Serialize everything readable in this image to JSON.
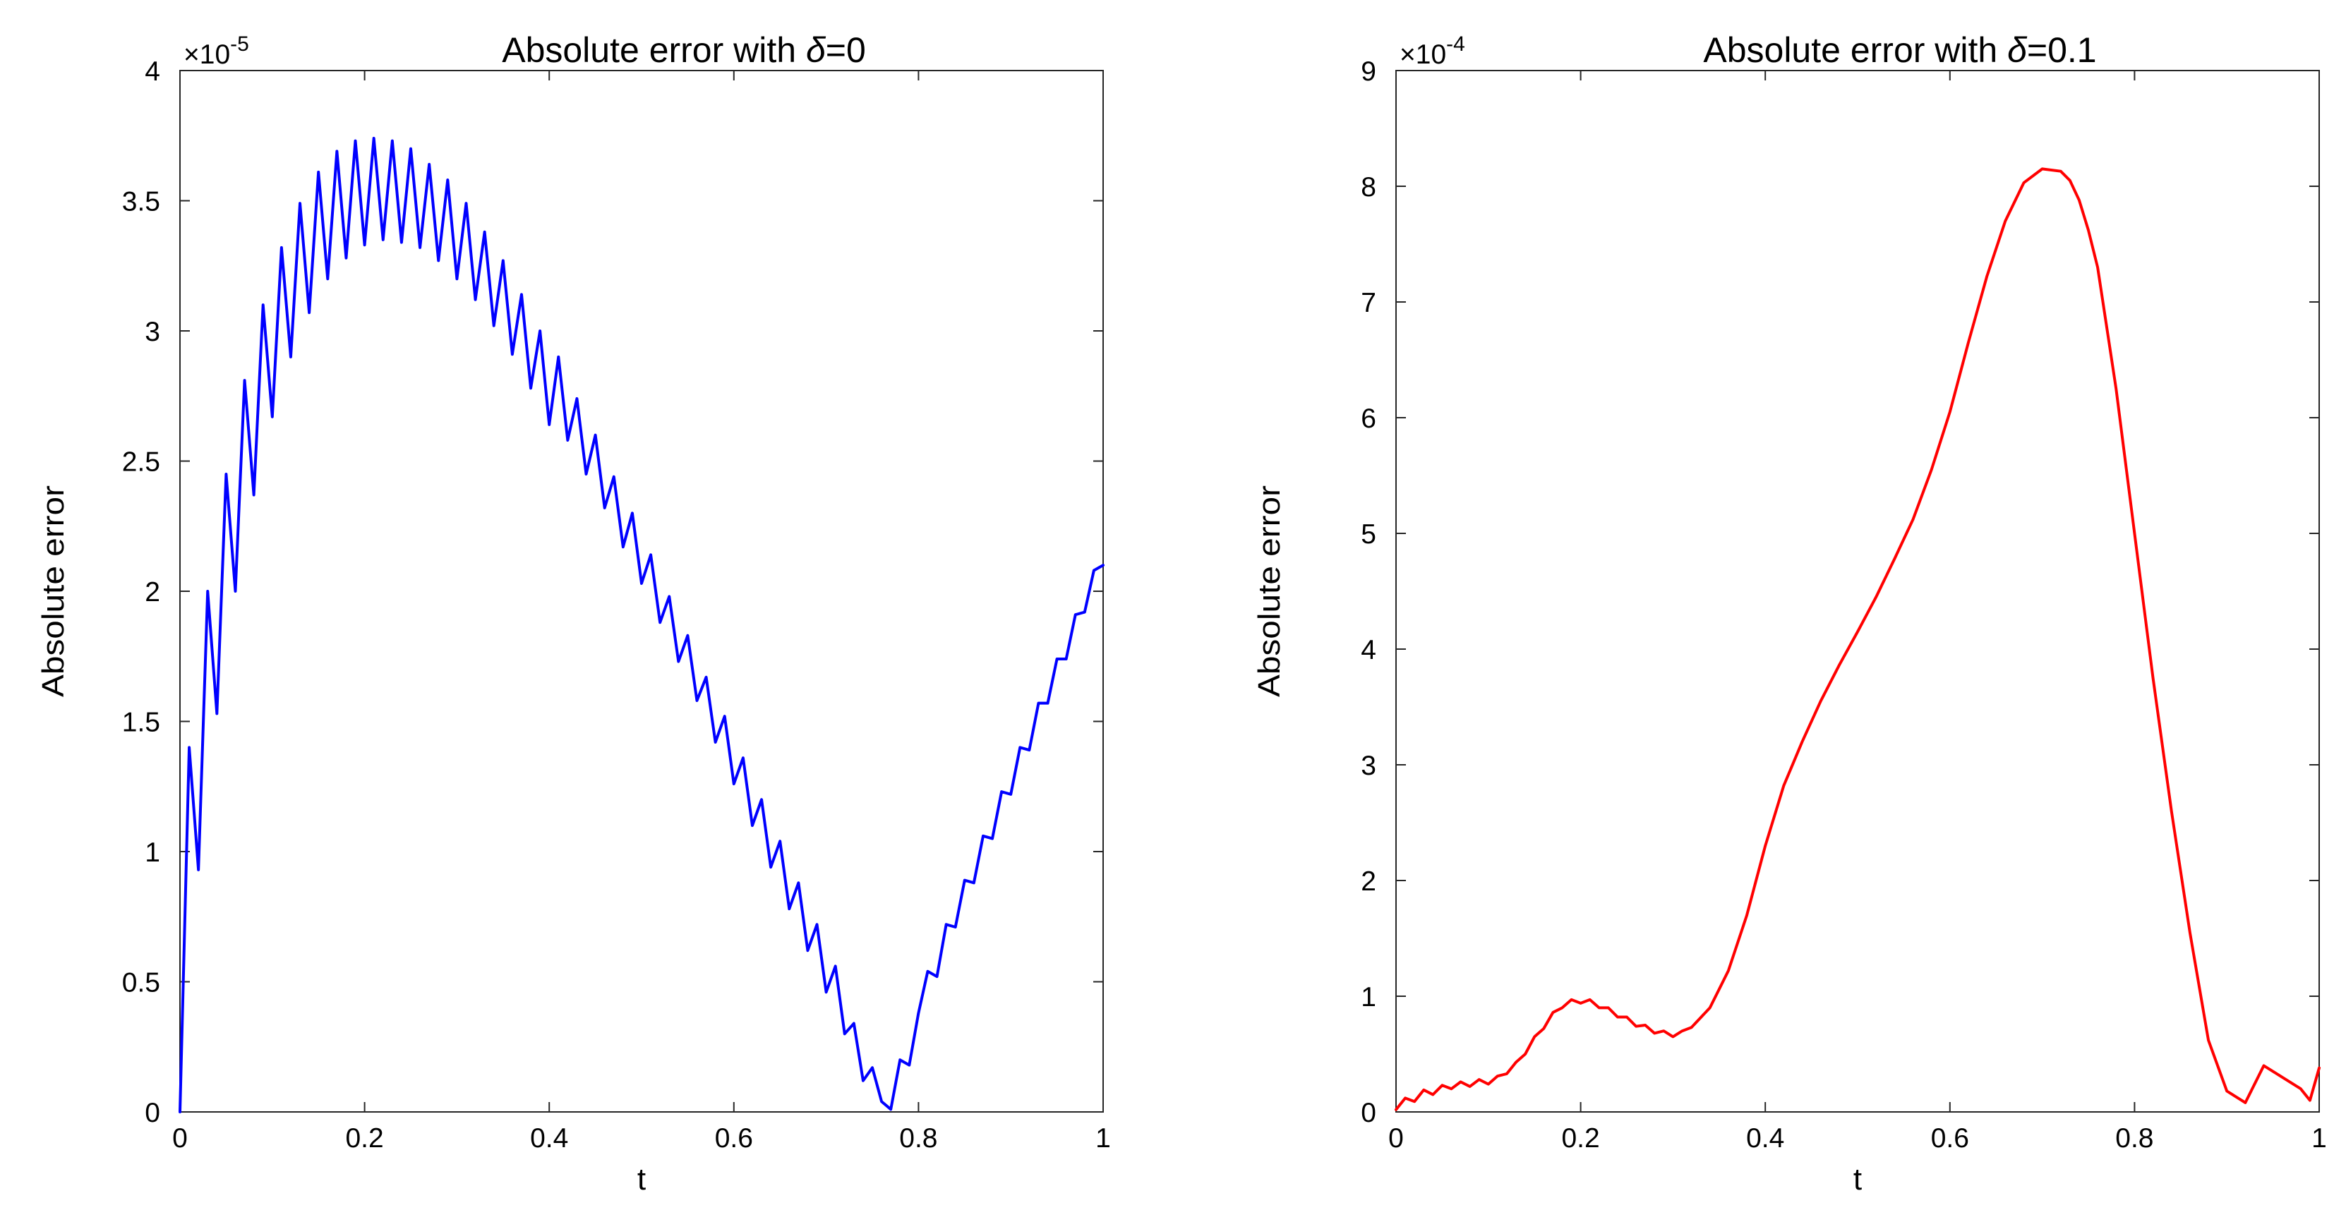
{
  "chart_data": [
    {
      "type": "line",
      "title_prefix": "Absolute error with ",
      "title_symbol": "δ",
      "title_suffix": "=0",
      "xlabel": "t",
      "ylabel": "Absolute error",
      "exponent_prefix": "×10",
      "exponent_power": "-5",
      "xlim": [
        0,
        1
      ],
      "ylim": [
        0,
        4
      ],
      "xticks": [
        0,
        0.2,
        0.4,
        0.6,
        0.8,
        1
      ],
      "xtick_labels": [
        "0",
        "0.2",
        "0.4",
        "0.6",
        "0.8",
        "1"
      ],
      "yticks": [
        0,
        0.5,
        1,
        1.5,
        2,
        2.5,
        3,
        3.5,
        4
      ],
      "ytick_labels": [
        "0",
        "0.5",
        "1",
        "1.5",
        "2",
        "2.5",
        "3",
        "3.5",
        "4"
      ],
      "grid": false,
      "series": [
        {
          "color": "#0000ff",
          "x": [
            0,
            0.01,
            0.02,
            0.03,
            0.04,
            0.05,
            0.06,
            0.07,
            0.08,
            0.09,
            0.1,
            0.11,
            0.12,
            0.13,
            0.14,
            0.15,
            0.16,
            0.17,
            0.18,
            0.19,
            0.2,
            0.21,
            0.22,
            0.23,
            0.24,
            0.25,
            0.26,
            0.27,
            0.28,
            0.29,
            0.3,
            0.31,
            0.32,
            0.33,
            0.34,
            0.35,
            0.36,
            0.37,
            0.38,
            0.39,
            0.4,
            0.41,
            0.42,
            0.43,
            0.44,
            0.45,
            0.46,
            0.47,
            0.48,
            0.49,
            0.5,
            0.51,
            0.52,
            0.53,
            0.54,
            0.55,
            0.56,
            0.57,
            0.58,
            0.59,
            0.6,
            0.61,
            0.62,
            0.63,
            0.64,
            0.65,
            0.66,
            0.67,
            0.68,
            0.69,
            0.7,
            0.71,
            0.72,
            0.73,
            0.74,
            0.75,
            0.76,
            0.77,
            0.78,
            0.79,
            0.8,
            0.81,
            0.82,
            0.83,
            0.84,
            0.85,
            0.86,
            0.87,
            0.88,
            0.89,
            0.9,
            0.91,
            0.92,
            0.93,
            0.94,
            0.95,
            0.96,
            0.97,
            0.98,
            0.99,
            1
          ],
          "y": [
            0,
            1.4,
            0.93,
            2.0,
            1.53,
            2.45,
            2.0,
            2.81,
            2.37,
            3.1,
            2.67,
            3.32,
            2.9,
            3.49,
            3.07,
            3.61,
            3.2,
            3.69,
            3.28,
            3.73,
            3.33,
            3.74,
            3.35,
            3.73,
            3.34,
            3.7,
            3.32,
            3.64,
            3.27,
            3.58,
            3.2,
            3.49,
            3.12,
            3.38,
            3.02,
            3.27,
            2.91,
            3.14,
            2.78,
            3.0,
            2.64,
            2.9,
            2.58,
            2.74,
            2.45,
            2.6,
            2.32,
            2.44,
            2.17,
            2.3,
            2.03,
            2.14,
            1.88,
            1.98,
            1.73,
            1.83,
            1.58,
            1.67,
            1.42,
            1.52,
            1.26,
            1.36,
            1.1,
            1.2,
            0.94,
            1.04,
            0.78,
            0.88,
            0.62,
            0.72,
            0.46,
            0.56,
            0.3,
            0.34,
            0.12,
            0.17,
            0.04,
            0.01,
            0.2,
            0.18,
            0.38,
            0.54,
            0.52,
            0.72,
            0.71,
            0.89,
            0.88,
            1.06,
            1.05,
            1.23,
            1.22,
            1.4,
            1.39,
            1.57,
            1.57,
            1.74,
            1.74,
            1.91,
            1.92,
            2.08,
            2.1
          ]
        }
      ]
    },
    {
      "type": "line",
      "title_prefix": "Absolute error with ",
      "title_symbol": "δ",
      "title_suffix": "=0.1",
      "xlabel": "t",
      "ylabel": "Absolute error",
      "exponent_prefix": "×10",
      "exponent_power": "-4",
      "xlim": [
        0,
        1
      ],
      "ylim": [
        0,
        9
      ],
      "xticks": [
        0,
        0.2,
        0.4,
        0.6,
        0.8,
        1
      ],
      "xtick_labels": [
        "0",
        "0.2",
        "0.4",
        "0.6",
        "0.8",
        "1"
      ],
      "yticks": [
        0,
        1,
        2,
        3,
        4,
        5,
        6,
        7,
        8,
        9
      ],
      "ytick_labels": [
        "0",
        "1",
        "2",
        "3",
        "4",
        "5",
        "6",
        "7",
        "8",
        "9"
      ],
      "grid": false,
      "series": [
        {
          "color": "#ff0000",
          "x": [
            0,
            0.01,
            0.02,
            0.03,
            0.04,
            0.05,
            0.06,
            0.07,
            0.08,
            0.09,
            0.1,
            0.11,
            0.12,
            0.13,
            0.14,
            0.15,
            0.16,
            0.17,
            0.18,
            0.19,
            0.2,
            0.21,
            0.22,
            0.23,
            0.24,
            0.25,
            0.26,
            0.27,
            0.28,
            0.29,
            0.3,
            0.31,
            0.32,
            0.34,
            0.36,
            0.38,
            0.4,
            0.42,
            0.44,
            0.46,
            0.48,
            0.5,
            0.52,
            0.54,
            0.56,
            0.58,
            0.6,
            0.62,
            0.64,
            0.66,
            0.68,
            0.7,
            0.72,
            0.73,
            0.74,
            0.75,
            0.76,
            0.78,
            0.8,
            0.82,
            0.84,
            0.86,
            0.88,
            0.9,
            0.92,
            0.94,
            0.96,
            0.98,
            0.99,
            1
          ],
          "y": [
            0.02,
            0.12,
            0.09,
            0.19,
            0.15,
            0.23,
            0.2,
            0.26,
            0.22,
            0.28,
            0.24,
            0.31,
            0.33,
            0.43,
            0.5,
            0.65,
            0.72,
            0.86,
            0.9,
            0.97,
            0.94,
            0.97,
            0.9,
            0.9,
            0.82,
            0.82,
            0.74,
            0.75,
            0.68,
            0.7,
            0.65,
            0.7,
            0.73,
            0.9,
            1.22,
            1.7,
            2.3,
            2.82,
            3.2,
            3.55,
            3.86,
            4.15,
            4.45,
            4.78,
            5.12,
            5.55,
            6.05,
            6.65,
            7.22,
            7.7,
            8.03,
            8.15,
            8.13,
            8.05,
            7.88,
            7.62,
            7.3,
            6.25,
            5.0,
            3.75,
            2.6,
            1.55,
            0.62,
            0.18,
            0.08,
            0.4,
            0.3,
            0.2,
            0.1,
            0.38
          ]
        }
      ]
    }
  ]
}
